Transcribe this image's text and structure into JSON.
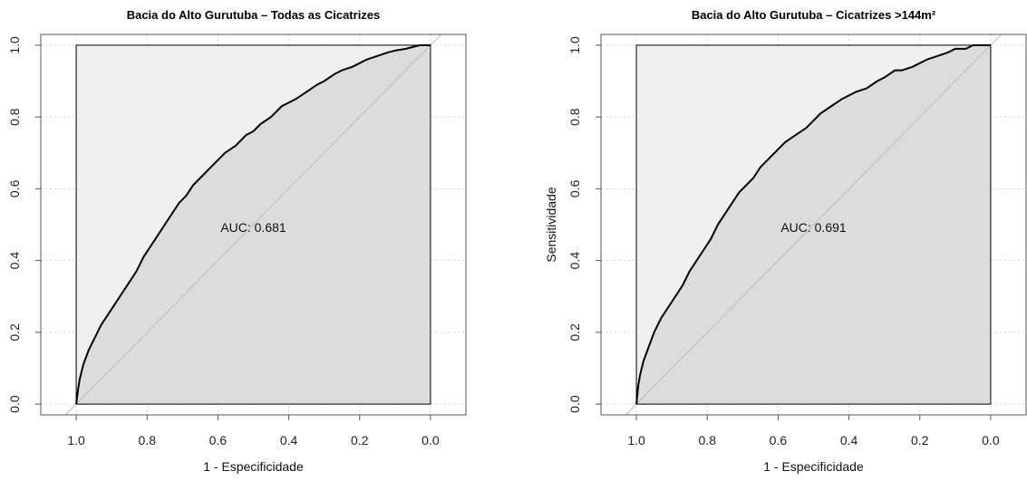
{
  "chart_data": [
    {
      "type": "line",
      "title": "Bacia do Alto Gurutuba – Todas as Cicatrizes",
      "xlabel": "1 - Especificidade",
      "ylabel": "",
      "xlim": [
        1.1,
        -0.1
      ],
      "ylim": [
        -0.03,
        1.03
      ],
      "x_ticks": [
        "1.0",
        "0.8",
        "0.6",
        "0.4",
        "0.2",
        "0.0"
      ],
      "y_ticks": [
        "0.0",
        "0.2",
        "0.4",
        "0.6",
        "0.8",
        "1.0"
      ],
      "grid": true,
      "annotation": "AUC: 0.681",
      "series": [
        {
          "x": [
            1.0,
            0.995,
            0.99,
            0.98,
            0.965,
            0.95,
            0.93,
            0.91,
            0.89,
            0.87,
            0.85,
            0.83,
            0.81,
            0.79,
            0.77,
            0.75,
            0.73,
            0.71,
            0.69,
            0.67,
            0.65,
            0.62,
            0.6,
            0.58,
            0.55,
            0.52,
            0.5,
            0.48,
            0.45,
            0.42,
            0.4,
            0.38,
            0.35,
            0.32,
            0.3,
            0.27,
            0.25,
            0.22,
            0.2,
            0.18,
            0.15,
            0.12,
            0.1,
            0.07,
            0.05,
            0.03,
            0.02,
            0.0
          ],
          "y": [
            0.0,
            0.04,
            0.07,
            0.11,
            0.15,
            0.18,
            0.22,
            0.25,
            0.28,
            0.31,
            0.34,
            0.37,
            0.41,
            0.44,
            0.47,
            0.5,
            0.53,
            0.56,
            0.58,
            0.61,
            0.63,
            0.66,
            0.68,
            0.7,
            0.72,
            0.75,
            0.76,
            0.78,
            0.8,
            0.83,
            0.84,
            0.85,
            0.87,
            0.89,
            0.9,
            0.92,
            0.93,
            0.94,
            0.95,
            0.96,
            0.97,
            0.98,
            0.985,
            0.99,
            0.995,
            1.0,
            1.0,
            1.0
          ]
        }
      ]
    },
    {
      "type": "line",
      "title": "Bacia do Alto Gurutuba – Cicatrizes >144m²",
      "xlabel": "1 - Especificidade",
      "ylabel": "Sensitividade",
      "xlim": [
        1.1,
        -0.1
      ],
      "ylim": [
        -0.03,
        1.03
      ],
      "x_ticks": [
        "1.0",
        "0.8",
        "0.6",
        "0.4",
        "0.2",
        "0.0"
      ],
      "y_ticks": [
        "0.0",
        "0.2",
        "0.4",
        "0.6",
        "0.8",
        "1.0"
      ],
      "grid": true,
      "annotation": "AUC: 0.691",
      "series": [
        {
          "x": [
            1.0,
            0.995,
            0.99,
            0.98,
            0.965,
            0.95,
            0.93,
            0.91,
            0.89,
            0.87,
            0.85,
            0.83,
            0.81,
            0.79,
            0.77,
            0.75,
            0.73,
            0.71,
            0.69,
            0.67,
            0.65,
            0.62,
            0.6,
            0.58,
            0.55,
            0.52,
            0.5,
            0.48,
            0.45,
            0.42,
            0.4,
            0.38,
            0.35,
            0.32,
            0.3,
            0.27,
            0.25,
            0.22,
            0.2,
            0.18,
            0.15,
            0.12,
            0.1,
            0.07,
            0.05,
            0.03,
            0.02,
            0.0
          ],
          "y": [
            0.0,
            0.05,
            0.08,
            0.12,
            0.16,
            0.2,
            0.24,
            0.27,
            0.3,
            0.33,
            0.37,
            0.4,
            0.43,
            0.46,
            0.5,
            0.53,
            0.56,
            0.59,
            0.61,
            0.63,
            0.66,
            0.69,
            0.71,
            0.73,
            0.75,
            0.77,
            0.79,
            0.81,
            0.83,
            0.85,
            0.86,
            0.87,
            0.88,
            0.9,
            0.91,
            0.93,
            0.93,
            0.94,
            0.95,
            0.96,
            0.97,
            0.98,
            0.99,
            0.99,
            1.0,
            1.0,
            1.0,
            1.0
          ]
        }
      ]
    }
  ],
  "colors": {
    "curve": "#000000",
    "fill_under": "#dcdcdc",
    "fill_over": "#f0f0f0",
    "diagonal": "#bbbbbb",
    "grid": "#d0d0d0",
    "axis": "#555555"
  }
}
